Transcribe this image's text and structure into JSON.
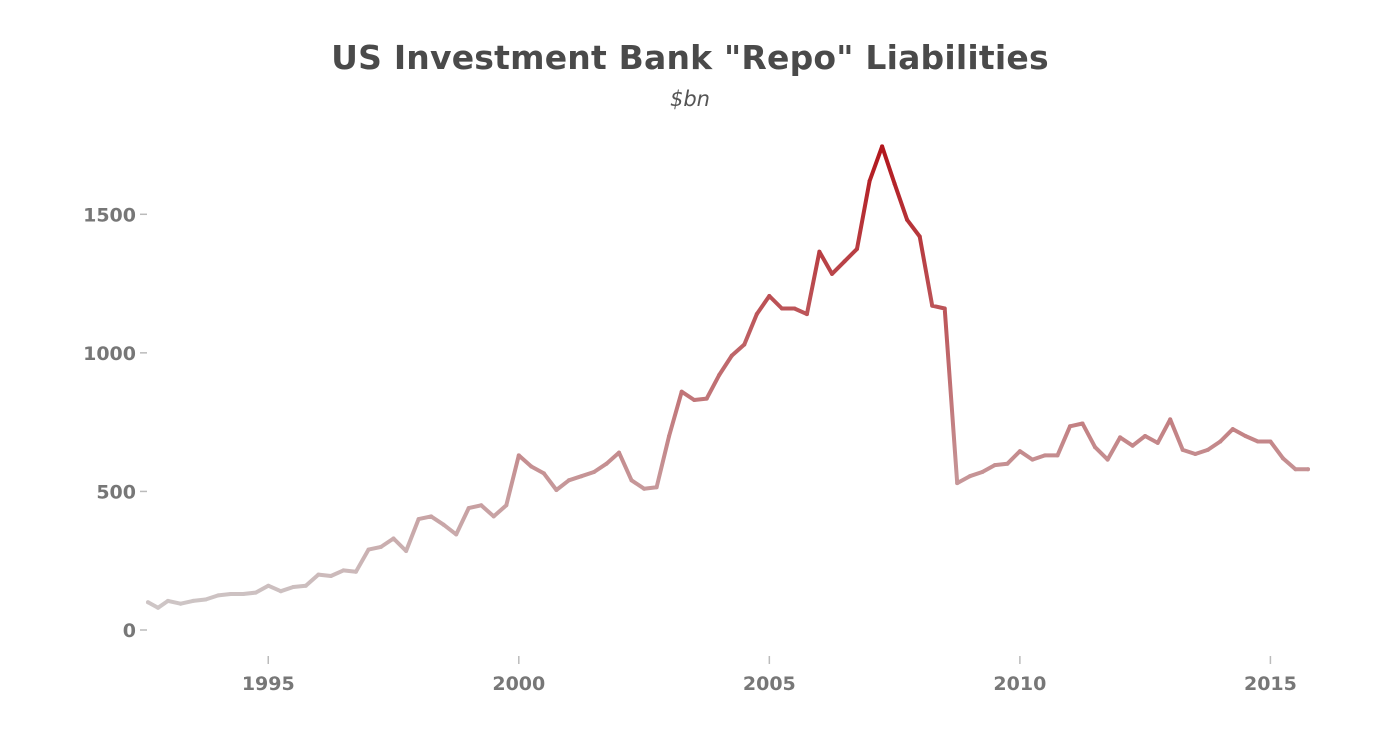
{
  "chart_data": {
    "type": "line",
    "title": "US Investment Bank \"Repo\" Liabilities",
    "subtitle": "$bn",
    "xlabel": "",
    "ylabel": "",
    "xlim": [
      1992.6,
      2015.75
    ],
    "ylim": [
      0,
      1750
    ],
    "x_ticks": [
      1995,
      2000,
      2005,
      2010,
      2015
    ],
    "x_tick_labels": [
      "1995",
      "2000",
      "2005",
      "2010",
      "2015"
    ],
    "y_ticks": [
      0,
      500,
      1000,
      1500
    ],
    "y_tick_labels": [
      "0",
      "500",
      "1000",
      "1500"
    ],
    "grid": false,
    "legend": "none",
    "color_low": "#cfcfcf",
    "color_high": "#b2151b",
    "series": [
      {
        "x": [
          1992.6,
          1992.8,
          1993.0,
          1993.25,
          1993.5,
          1993.75,
          1994.0,
          1994.25,
          1994.5,
          1994.75,
          1995.0,
          1995.25,
          1995.5,
          1995.75,
          1996.0,
          1996.25,
          1996.5,
          1996.75,
          1997.0,
          1997.25,
          1997.5,
          1997.75,
          1998.0,
          1998.25,
          1998.5,
          1998.75,
          1999.0,
          1999.25,
          1999.5,
          1999.75,
          2000.0,
          2000.25,
          2000.5,
          2000.75,
          2001.0,
          2001.25,
          2001.5,
          2001.75,
          2002.0,
          2002.25,
          2002.5,
          2002.75,
          2003.0,
          2003.25,
          2003.5,
          2003.75,
          2004.0,
          2004.25,
          2004.5,
          2004.75,
          2005.0,
          2005.25,
          2005.5,
          2005.75,
          2006.0,
          2006.25,
          2006.5,
          2006.75,
          2007.0,
          2007.25,
          2007.5,
          2007.75,
          2008.0,
          2008.25,
          2008.5,
          2008.75,
          2009.0,
          2009.25,
          2009.5,
          2009.75,
          2010.0,
          2010.25,
          2010.5,
          2010.75,
          2011.0,
          2011.25,
          2011.5,
          2011.75,
          2012.0,
          2012.25,
          2012.5,
          2012.75,
          2013.0,
          2013.25,
          2013.5,
          2013.75,
          2014.0,
          2014.25,
          2014.5,
          2014.75,
          2015.0,
          2015.25,
          2015.5,
          2015.75
        ],
        "values": [
          100,
          80,
          105,
          95,
          105,
          110,
          125,
          130,
          130,
          135,
          160,
          140,
          155,
          160,
          200,
          195,
          215,
          210,
          290,
          300,
          330,
          285,
          400,
          410,
          380,
          345,
          440,
          450,
          410,
          450,
          630,
          590,
          565,
          505,
          540,
          555,
          570,
          600,
          640,
          540,
          510,
          515,
          700,
          860,
          830,
          835,
          920,
          990,
          1030,
          1140,
          1205,
          1160,
          1160,
          1140,
          1365,
          1285,
          1330,
          1375,
          1620,
          1745,
          1610,
          1480,
          1420,
          1170,
          1160,
          530,
          555,
          570,
          595,
          600,
          645,
          615,
          630,
          630,
          735,
          745,
          660,
          615,
          695,
          665,
          700,
          675,
          760,
          650,
          635,
          650,
          680,
          725,
          700,
          680,
          680,
          620,
          580,
          580
        ]
      }
    ]
  }
}
